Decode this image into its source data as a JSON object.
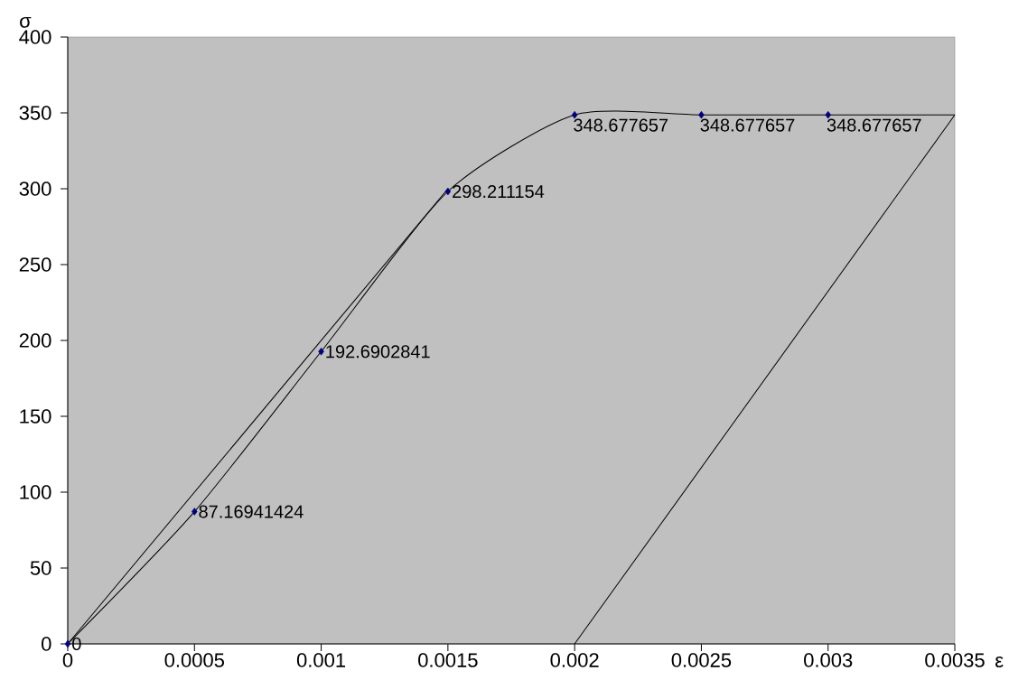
{
  "chart_data": {
    "type": "line",
    "xlabel": "ε",
    "ylabel": "σ",
    "xlim": [
      0,
      0.0035
    ],
    "xticks": [
      0,
      0.0005,
      0.001,
      0.0015,
      0.002,
      0.0025,
      0.003,
      0.0035
    ],
    "ylim": [
      0,
      400
    ],
    "yticks": [
      0,
      50,
      100,
      150,
      200,
      250,
      300,
      350,
      400
    ],
    "line_style": "solid",
    "series": [
      {
        "type": "line",
        "color": "#000000",
        "marker": "none",
        "x": [
          0,
          0.0005,
          0.001,
          0.0015,
          0.002,
          0.0025,
          0.003,
          0.0035
        ],
        "values": [
          0,
          87.16941424,
          192.6902841,
          298.211154,
          348.677657,
          348.677657,
          348.677657,
          348.677657
        ]
      },
      {
        "type": "line",
        "color": "#000000",
        "marker": "none",
        "x": [
          0,
          0.0015
        ],
        "values": [
          0,
          300
        ]
      },
      {
        "type": "line",
        "color": "#000000",
        "marker": "none",
        "x": [
          0.002,
          0.0035
        ],
        "values": [
          0,
          348.677657
        ]
      },
      {
        "type": "scatter",
        "color": "#000080",
        "marker": "diamond",
        "x": [
          0,
          0.0005,
          0.001,
          0.0015,
          0.002,
          0.0025,
          0.003
        ],
        "values": [
          0,
          87.16941424,
          192.6902841,
          298.211154,
          348.677657,
          348.677657,
          348.677657
        ],
        "value_labels": [
          "0",
          "87.16941424",
          "192.6902841",
          "298.211154",
          "348.677657",
          "348.677657",
          "348.677657"
        ]
      }
    ]
  }
}
